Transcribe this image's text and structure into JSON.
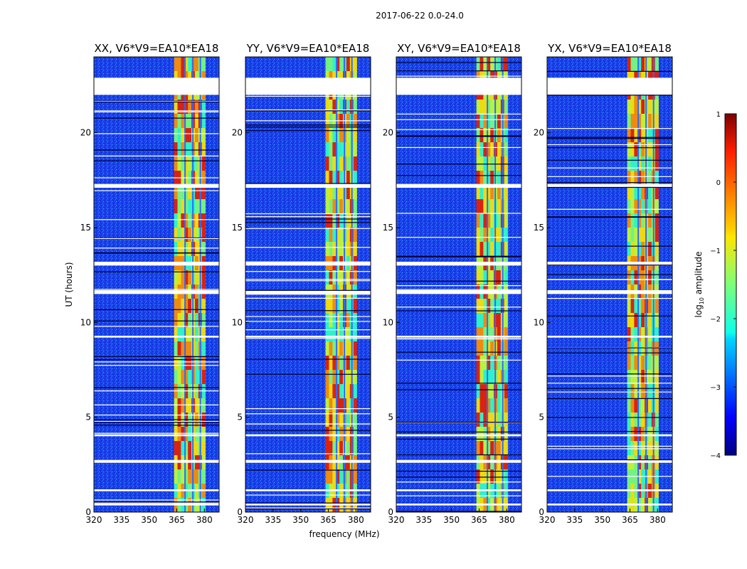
{
  "figure": {
    "suptitle": "2017-06-22 0.0-24.0"
  },
  "chart_data": {
    "type": "heatmap",
    "xlabel": "frequency (MHz)",
    "ylabel": "UT (hours)",
    "xlim": [
      320,
      388
    ],
    "ylim": [
      0,
      24
    ],
    "xticks": [
      320,
      335,
      350,
      365,
      380
    ],
    "yticks": [
      0,
      5,
      10,
      15,
      20
    ],
    "panels": [
      {
        "title": "XX, V6*V9=EA10*EA18",
        "polarization": "XX"
      },
      {
        "title": "YY, V6*V9=EA10*EA18",
        "polarization": "YY"
      },
      {
        "title": "XY, V6*V9=EA10*EA18",
        "polarization": "XY"
      },
      {
        "title": "YX, V6*V9=EA10*EA18",
        "polarization": "YX"
      }
    ],
    "colorbar": {
      "label": "log10 amplitude",
      "label_base": "log",
      "label_sub": "10",
      "label_rest": " amplitude",
      "range": [
        -4,
        1
      ],
      "ticks": [
        "1",
        "0",
        "−1",
        "−2",
        "−3",
        "−4"
      ],
      "colormap": "jet"
    },
    "blanked_time_ranges_hours": [
      [
        22.0,
        22.9
      ],
      [
        17.1,
        17.3
      ],
      [
        13.0,
        13.2
      ],
      [
        11.5,
        11.7
      ],
      [
        9.2,
        9.3
      ],
      [
        4.0,
        4.1
      ],
      [
        2.6,
        2.75
      ],
      [
        1.1,
        1.2
      ],
      [
        0.35,
        0.45
      ]
    ],
    "rfi_band_mhz": [
      363.5,
      380.5
    ],
    "grid": false
  }
}
